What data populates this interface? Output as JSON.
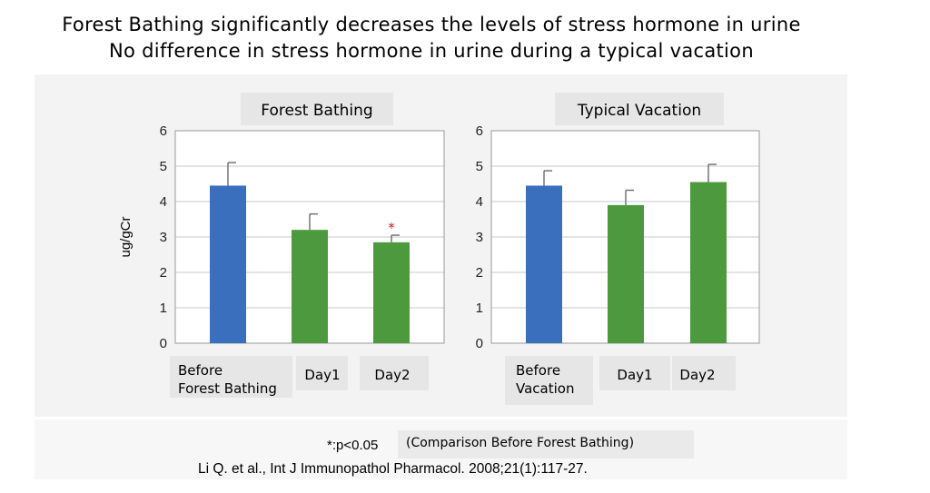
{
  "headline": {
    "line1": "Forest Bathing significantly decreases the levels of stress hormone in urine",
    "line2": "No difference in stress hormone in urine during a typical vacation"
  },
  "footnote": {
    "significance": "*:p<0.05",
    "comparison": "(Comparison Before Forest Bathing)",
    "citation": "Li Q. et al., Int J Immunopathol Pharmacol. 2008;21(1):117-27."
  },
  "colors": {
    "baseline_bar": "#3a6fbe",
    "day_bar": "#4d9a3e",
    "significance_marker": "#d11b1b",
    "label_box": "#e6e6e6"
  },
  "chart_data": [
    {
      "type": "bar",
      "title": "Forest Bathing",
      "ylabel": "ug/gCr",
      "ylim": [
        0,
        6
      ],
      "yticks": [
        "0",
        "1",
        "2",
        "3",
        "4",
        "5",
        "6"
      ],
      "grid": true,
      "categories": [
        [
          "Before",
          "Forest Bathing"
        ],
        [
          "Day1"
        ],
        [
          "Day2"
        ]
      ],
      "values": [
        4.45,
        3.2,
        2.85
      ],
      "errors": [
        0.65,
        0.45,
        0.2
      ],
      "significant": [
        false,
        false,
        true
      ],
      "significance_symbol": "*"
    },
    {
      "type": "bar",
      "title": "Typical Vacation",
      "ylabel": "",
      "ylim": [
        0,
        6
      ],
      "yticks": [
        "0",
        "1",
        "2",
        "3",
        "4",
        "5",
        "6"
      ],
      "grid": true,
      "categories": [
        [
          "Before",
          "Vacation"
        ],
        [
          "Day1"
        ],
        [
          "Day2"
        ]
      ],
      "values": [
        4.45,
        3.9,
        4.55
      ],
      "errors": [
        0.42,
        0.42,
        0.5
      ],
      "significant": [
        false,
        false,
        false
      ],
      "significance_symbol": "*"
    }
  ]
}
